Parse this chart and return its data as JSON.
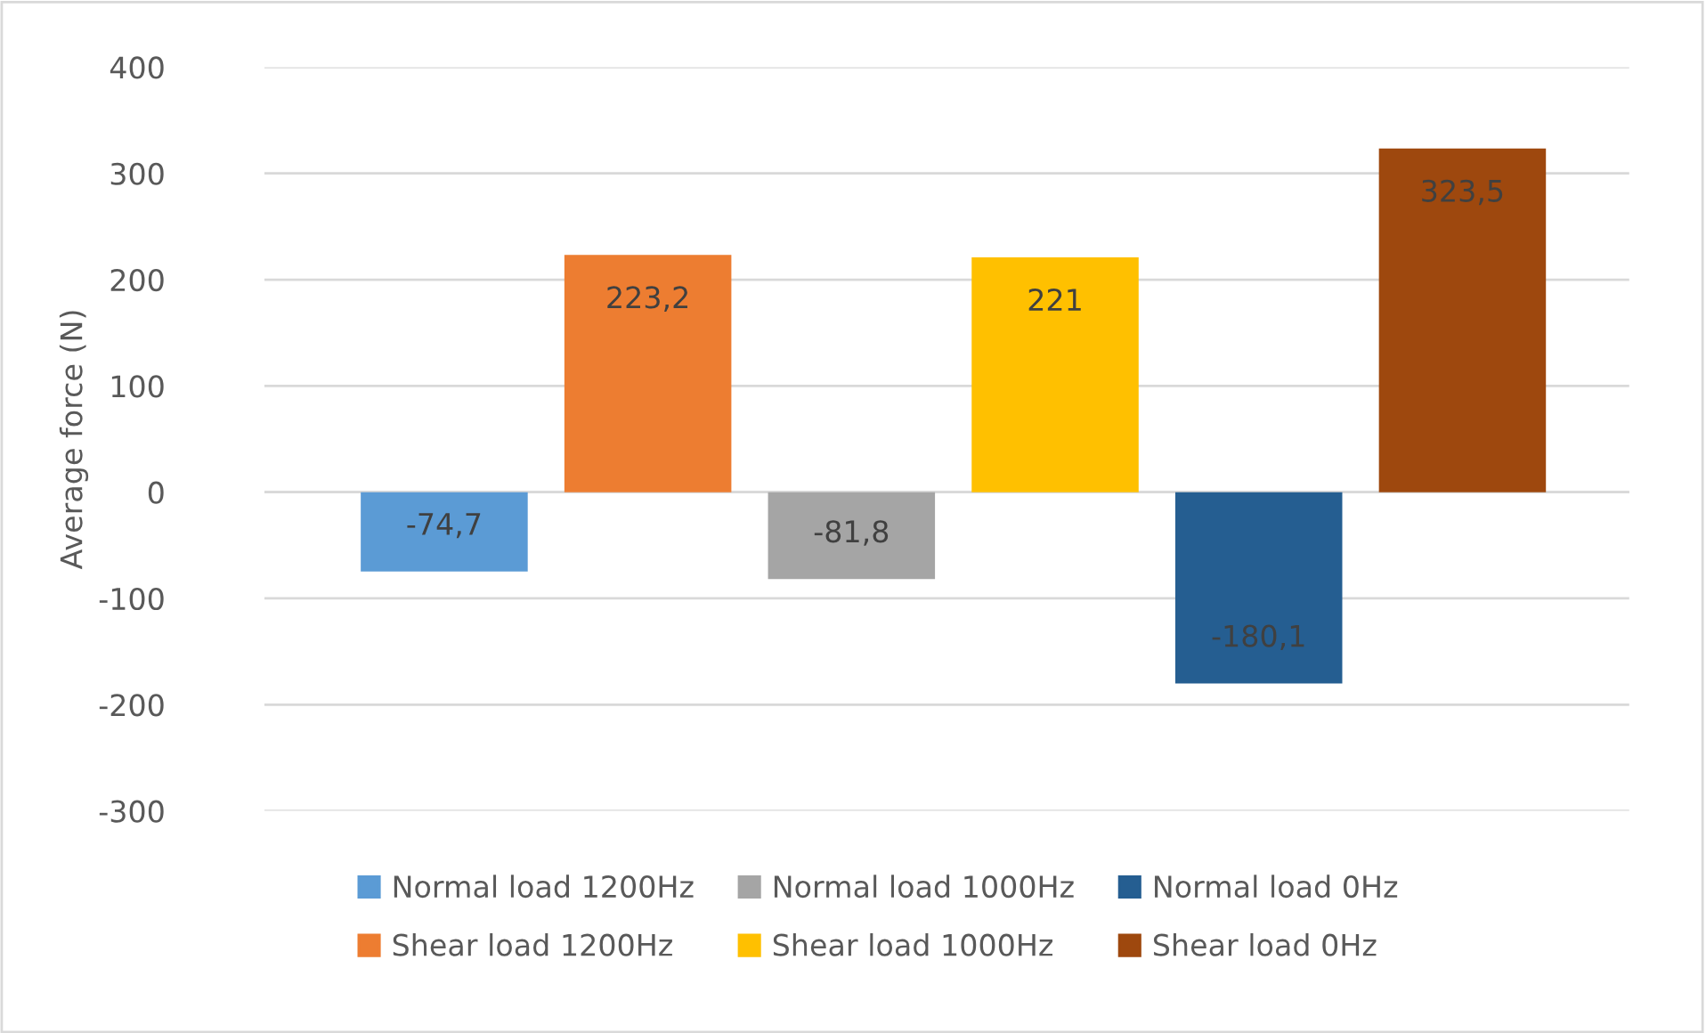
{
  "chart_data": {
    "type": "bar",
    "ylabel": "Average force (N)",
    "categories": [
      null
    ],
    "series": [
      {
        "name": "Normal load 1200Hz",
        "color": "#5b9bd5",
        "values": [
          -74.7
        ],
        "value_labels": [
          "-74,7"
        ]
      },
      {
        "name": "Shear load 1200Hz",
        "color": "#ed7d31",
        "values": [
          223.2
        ],
        "value_labels": [
          "223,2"
        ]
      },
      {
        "name": "Normal load 1000Hz",
        "color": "#a5a5a5",
        "values": [
          -81.8
        ],
        "value_labels": [
          "-81,8"
        ]
      },
      {
        "name": "Shear load 1000Hz",
        "color": "#ffc000",
        "values": [
          221
        ],
        "value_labels": [
          "221"
        ]
      },
      {
        "name": "Normal load 0Hz",
        "color": "#255e91",
        "values": [
          -180.1
        ],
        "value_labels": [
          "-180,1"
        ]
      },
      {
        "name": "Shear load 0Hz",
        "color": "#9e480e",
        "values": [
          323.5
        ],
        "value_labels": [
          "323,5"
        ]
      }
    ],
    "ylim": [
      -300,
      400
    ],
    "yticks": [
      -300,
      -200,
      -100,
      0,
      100,
      200,
      300,
      400
    ],
    "grid": "y",
    "legend": "bottom"
  }
}
